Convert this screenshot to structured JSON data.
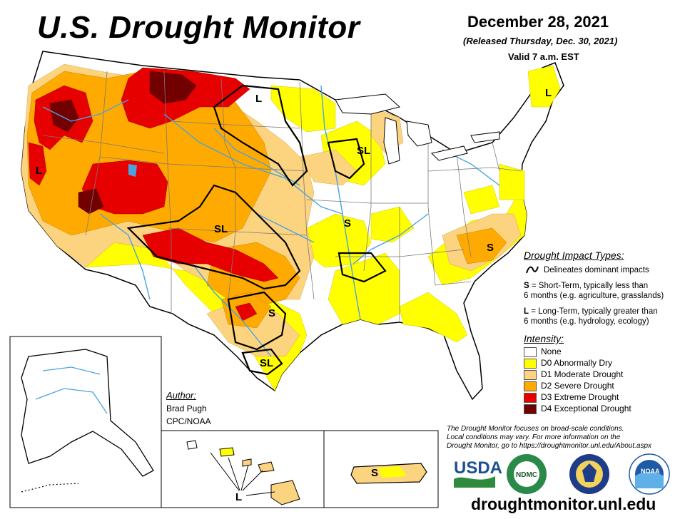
{
  "header": {
    "title": "U.S. Drought Monitor",
    "date": "December 28, 2021",
    "released": "(Released Thursday, Dec. 30, 2021)",
    "valid": "Valid 7 a.m. EST"
  },
  "impact_legend": {
    "heading": "Drought Impact Types:",
    "line_desc": "Delineates dominant impacts",
    "s_key": "S",
    "s_desc_1": " = Short-Term, typically less than",
    "s_desc_2": "6 months (e.g. agriculture, grasslands)",
    "l_key": "L",
    "l_desc_1": " = Long-Term, typically greater than",
    "l_desc_2": "6 months (e.g. hydrology, ecology)"
  },
  "intensity_legend": {
    "heading": "Intensity:",
    "items": [
      {
        "label": "None",
        "color": "#ffffff"
      },
      {
        "label": "D0 Abnormally Dry",
        "color": "#ffff00"
      },
      {
        "label": "D1 Moderate Drought",
        "color": "#fcd37f"
      },
      {
        "label": "D2 Severe Drought",
        "color": "#ffaa00"
      },
      {
        "label": "D3 Extreme Drought",
        "color": "#e60000"
      },
      {
        "label": "D4 Exceptional Drought",
        "color": "#730000"
      }
    ]
  },
  "author": {
    "heading": "Author:",
    "name": "Brad Pugh",
    "org": "CPC/NOAA"
  },
  "disclaimer": {
    "line1": "The Drought Monitor focuses on broad-scale conditions.",
    "line2": "Local conditions may vary. For more information on the",
    "line3": "Drought Monitor, go to https://droughtmonitor.unl.edu/About.aspx"
  },
  "website": "droughtmonitor.unl.edu",
  "map_labels": {
    "l_north": "L",
    "sl_midwest": "SL",
    "l_northeast": "L",
    "l_west": "L",
    "sl_colorado": "SL",
    "s_missouri": "S",
    "s_carolina": "S",
    "s_texas": "S",
    "sl_texas": "SL",
    "l_hawaii": "L",
    "s_pr": "S"
  },
  "logos": {
    "usda": "USDA",
    "ndmc": "NDMC",
    "ndmc_ring": "NATIONAL DROUGHT MITIGATION CENTER",
    "noaa": "NOAA"
  },
  "colors": {
    "d0": "#ffff00",
    "d1": "#fcd37f",
    "d2": "#ffaa00",
    "d3": "#e60000",
    "d4": "#730000",
    "river": "#4aa3df",
    "boundary": "#7a7a7a"
  }
}
